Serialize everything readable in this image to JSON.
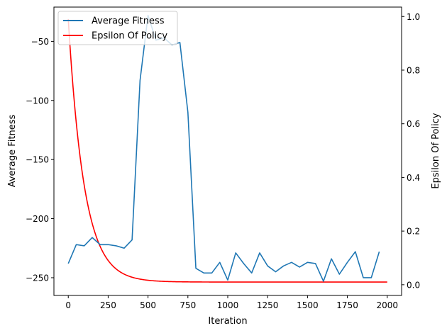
{
  "chart_data": {
    "type": "line",
    "title": "",
    "xlabel": "Iteration",
    "ylabel_left": "Average Fitness",
    "ylabel_right": "Epsilon Of Policy",
    "xlim": [
      -90,
      2090
    ],
    "ylim_left": [
      -265,
      -21
    ],
    "ylim_right": [
      -0.04,
      1.035
    ],
    "xticks": [
      0,
      250,
      500,
      750,
      1000,
      1250,
      1500,
      1750,
      2000
    ],
    "yticks_left": [
      -250,
      -200,
      -150,
      -100,
      -50
    ],
    "ytick_labels_left": [
      "−250",
      "−200",
      "−150",
      "−100",
      "−50"
    ],
    "yticks_right": [
      0.0,
      0.2,
      0.4,
      0.6,
      0.8,
      1.0
    ],
    "ytick_labels_right": [
      "0.0",
      "0.2",
      "0.4",
      "0.6",
      "0.8",
      "1.0"
    ],
    "legend_position": "top-left",
    "series": [
      {
        "name": "Average Fitness",
        "color": "#1f77b4",
        "axis": "left",
        "x": [
          0,
          50,
          100,
          150,
          200,
          250,
          300,
          350,
          400,
          450,
          500,
          550,
          600,
          650,
          700,
          750,
          800,
          850,
          900,
          950,
          1000,
          1050,
          1100,
          1150,
          1200,
          1250,
          1300,
          1350,
          1400,
          1450,
          1500,
          1550,
          1600,
          1650,
          1700,
          1750,
          1800,
          1850,
          1900,
          1950
        ],
        "y": [
          -238,
          -222,
          -223,
          -216,
          -222,
          -222,
          -223,
          -225,
          -218,
          -83,
          -28,
          -49,
          -47,
          -53,
          -51,
          -110,
          -242,
          -246,
          -246,
          -237,
          -252,
          -229,
          -238,
          -246,
          -229,
          -240,
          -245,
          -240,
          -237,
          -241,
          -237,
          -238,
          -253,
          -234,
          -247,
          -237,
          -228,
          -250,
          -250,
          -228
        ]
      },
      {
        "name": "Epsilon Of Policy",
        "color": "#ff0000",
        "axis": "right",
        "function": "epsilon = 0.01 + 0.98 * exp(-iteration / 100)",
        "x_range": [
          0,
          2000
        ]
      }
    ]
  }
}
